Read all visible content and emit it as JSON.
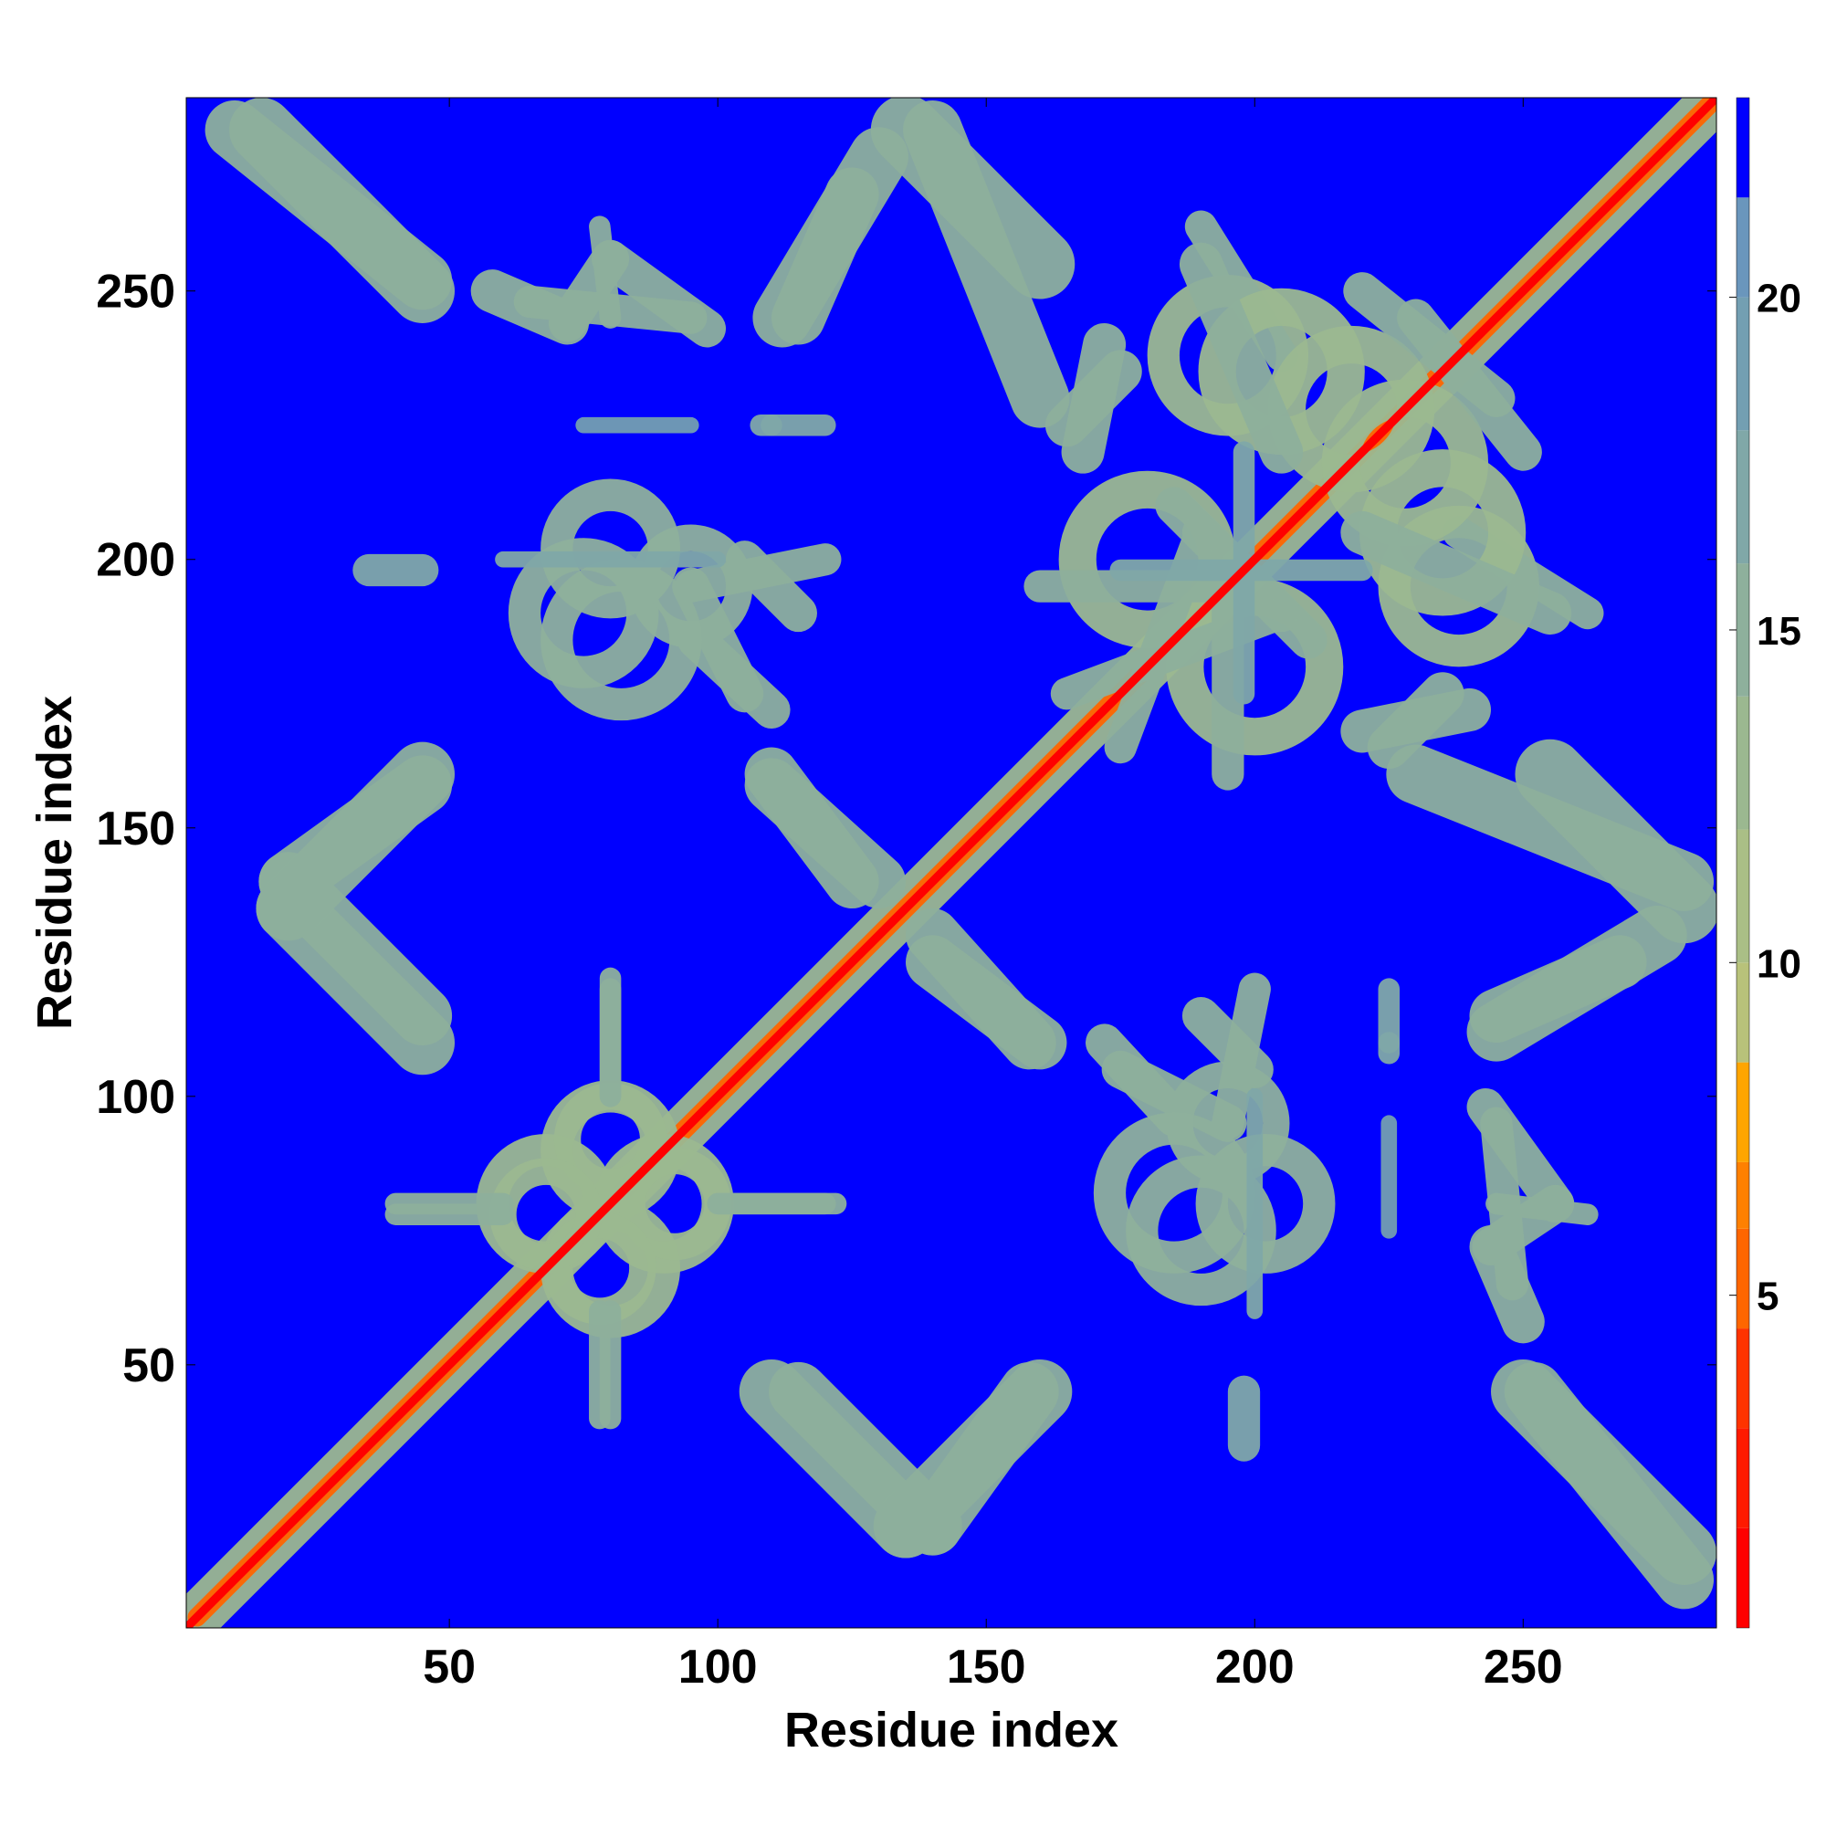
{
  "chart_data": {
    "type": "heatmap",
    "title": "",
    "xlabel": "Residue index",
    "ylabel": "Residue index",
    "xlim": [
      1,
      286
    ],
    "ylim": [
      1,
      286
    ],
    "x_ticks": [
      50,
      100,
      150,
      200,
      250
    ],
    "y_ticks": [
      50,
      100,
      150,
      200,
      250
    ],
    "colorbar": {
      "ticks": [
        5,
        10,
        15,
        20
      ],
      "range": [
        0,
        23
      ],
      "levels": [
        {
          "from": 0,
          "to": 1.5,
          "color": "#ff0000"
        },
        {
          "from": 1.5,
          "to": 3,
          "color": "#ff1a00"
        },
        {
          "from": 3,
          "to": 4.5,
          "color": "#ff3300"
        },
        {
          "from": 4.5,
          "to": 6,
          "color": "#ff6600"
        },
        {
          "from": 6,
          "to": 7,
          "color": "#ff8000"
        },
        {
          "from": 7,
          "to": 8.5,
          "color": "#ffa500"
        },
        {
          "from": 8.5,
          "to": 10,
          "color": "#b8c27a"
        },
        {
          "from": 10,
          "to": 12,
          "color": "#aabf86"
        },
        {
          "from": 12,
          "to": 14,
          "color": "#9bb890"
        },
        {
          "from": 14,
          "to": 16,
          "color": "#8eb09c"
        },
        {
          "from": 16,
          "to": 18,
          "color": "#80a8a8"
        },
        {
          "from": 18,
          "to": 20,
          "color": "#739fb2"
        },
        {
          "from": 20,
          "to": 21.5,
          "color": "#6a96bc"
        },
        {
          "from": 21.5,
          "to": 23,
          "color": "#0000ff"
        }
      ]
    },
    "background_value": 23,
    "diagonal": {
      "from": 1,
      "to": 286,
      "value": 1
    },
    "contact_regions": [
      {
        "type": "segment",
        "from": [
          3,
          3
        ],
        "to": [
          286,
          286
        ],
        "width": 9,
        "value": 12
      },
      {
        "type": "segment",
        "from": [
          3,
          3
        ],
        "to": [
          286,
          286
        ],
        "width": 3.5,
        "value": 5
      },
      {
        "type": "segment",
        "from": [
          10,
          280
        ],
        "to": [
          45,
          252
        ],
        "width": 11,
        "value": 15
      },
      {
        "type": "segment",
        "from": [
          58,
          250
        ],
        "to": [
          72,
          244
        ],
        "width": 8,
        "value": 15
      },
      {
        "type": "segment",
        "from": [
          72,
          244
        ],
        "to": [
          80,
          256
        ],
        "width": 7,
        "value": 15
      },
      {
        "type": "segment",
        "from": [
          80,
          256
        ],
        "to": [
          98,
          243
        ],
        "width": 7,
        "value": 15
      },
      {
        "type": "segment",
        "from": [
          112,
          245
        ],
        "to": [
          130,
          275
        ],
        "width": 11,
        "value": 15
      },
      {
        "type": "segment",
        "from": [
          135,
          280
        ],
        "to": [
          160,
          255
        ],
        "width": 13,
        "value": 15
      },
      {
        "type": "segment",
        "from": [
          165,
          225
        ],
        "to": [
          175,
          235
        ],
        "width": 8,
        "value": 14
      },
      {
        "type": "ring",
        "center": [
          195,
          238
        ],
        "r": 12,
        "width": 6,
        "value": 13
      },
      {
        "type": "segment",
        "from": [
          190,
          262
        ],
        "to": [
          205,
          238
        ],
        "width": 6,
        "value": 14
      },
      {
        "type": "ring",
        "center": [
          218,
          228
        ],
        "r": 12,
        "width": 7,
        "value": 13
      },
      {
        "type": "ring",
        "center": [
          235,
          205
        ],
        "r": 12,
        "width": 7,
        "value": 13
      },
      {
        "type": "segment",
        "from": [
          220,
          205
        ],
        "to": [
          255,
          190
        ],
        "width": 8,
        "value": 14
      },
      {
        "type": "segment",
        "from": [
          230,
          245
        ],
        "to": [
          250,
          220
        ],
        "width": 7,
        "value": 14
      },
      {
        "type": "ring",
        "center": [
          180,
          200
        ],
        "r": 13,
        "width": 7,
        "value": 13
      },
      {
        "type": "segment",
        "from": [
          160,
          195
        ],
        "to": [
          200,
          195
        ],
        "width": 6,
        "value": 14
      },
      {
        "type": "segment",
        "from": [
          175,
          165
        ],
        "to": [
          190,
          205
        ],
        "width": 6,
        "value": 14
      },
      {
        "type": "segment",
        "from": [
          190,
          205
        ],
        "to": [
          210,
          185
        ],
        "width": 7,
        "value": 14
      },
      {
        "type": "segment",
        "from": [
          198,
          175
        ],
        "to": [
          198,
          220
        ],
        "width": 4,
        "value": 16
      },
      {
        "type": "segment",
        "from": [
          220,
          168
        ],
        "to": [
          240,
          172
        ],
        "width": 8,
        "value": 14
      },
      {
        "type": "ring",
        "center": [
          75,
          190
        ],
        "r": 11,
        "width": 6,
        "value": 14
      },
      {
        "type": "ring",
        "center": [
          95,
          195
        ],
        "r": 9,
        "width": 5,
        "value": 14
      },
      {
        "type": "segment",
        "from": [
          96,
          185
        ],
        "to": [
          110,
          172
        ],
        "width": 7,
        "value": 14
      },
      {
        "type": "segment",
        "from": [
          105,
          200
        ],
        "to": [
          115,
          190
        ],
        "width": 7,
        "value": 14
      },
      {
        "type": "segment",
        "from": [
          110,
          158
        ],
        "to": [
          130,
          140
        ],
        "width": 10,
        "value": 14
      },
      {
        "type": "segment",
        "from": [
          140,
          125
        ],
        "to": [
          160,
          110
        ],
        "width": 10,
        "value": 14
      },
      {
        "type": "segment",
        "from": [
          20,
          140
        ],
        "to": [
          45,
          158
        ],
        "width": 11,
        "value": 15
      },
      {
        "type": "segment",
        "from": [
          20,
          140
        ],
        "to": [
          45,
          115
        ],
        "width": 11,
        "value": 15
      },
      {
        "type": "segment",
        "from": [
          230,
          160
        ],
        "to": [
          280,
          140
        ],
        "width": 11,
        "value": 15
      },
      {
        "type": "segment",
        "from": [
          245,
          115
        ],
        "to": [
          268,
          125
        ],
        "width": 10,
        "value": 15
      },
      {
        "type": "segment",
        "from": [
          250,
          45
        ],
        "to": [
          280,
          15
        ],
        "width": 12,
        "value": 15
      },
      {
        "type": "segment",
        "from": [
          110,
          45
        ],
        "to": [
          135,
          20
        ],
        "width": 12,
        "value": 15
      },
      {
        "type": "segment",
        "from": [
          135,
          20
        ],
        "to": [
          160,
          45
        ],
        "width": 12,
        "value": 15
      },
      {
        "type": "ring",
        "center": [
          68,
          80
        ],
        "r": 10,
        "width": 6,
        "value": 13
      },
      {
        "type": "ring",
        "center": [
          90,
          80
        ],
        "r": 10,
        "width": 6,
        "value": 13
      },
      {
        "type": "ring",
        "center": [
          80,
          92
        ],
        "r": 8,
        "width": 5,
        "value": 13
      },
      {
        "type": "ring",
        "center": [
          78,
          68
        ],
        "r": 8,
        "width": 5,
        "value": 13
      },
      {
        "type": "segment",
        "from": [
          80,
          100
        ],
        "to": [
          80,
          120
        ],
        "width": 4,
        "value": 14
      },
      {
        "type": "segment",
        "from": [
          80,
          60
        ],
        "to": [
          80,
          40
        ],
        "width": 4,
        "value": 14
      },
      {
        "type": "segment",
        "from": [
          40,
          78
        ],
        "to": [
          60,
          78
        ],
        "width": 4,
        "value": 14
      },
      {
        "type": "segment",
        "from": [
          100,
          80
        ],
        "to": [
          122,
          80
        ],
        "width": 4,
        "value": 14
      },
      {
        "type": "ring",
        "center": [
          185,
          82
        ],
        "r": 12,
        "width": 6,
        "value": 14
      },
      {
        "type": "ring",
        "center": [
          202,
          80
        ],
        "r": 10,
        "width": 6,
        "value": 14
      },
      {
        "type": "segment",
        "from": [
          175,
          105
        ],
        "to": [
          195,
          95
        ],
        "width": 7,
        "value": 14
      },
      {
        "type": "segment",
        "from": [
          195,
          95
        ],
        "to": [
          200,
          120
        ],
        "width": 6,
        "value": 14
      },
      {
        "type": "segment",
        "from": [
          245,
          95
        ],
        "to": [
          248,
          65
        ],
        "width": 6,
        "value": 14
      },
      {
        "type": "segment",
        "from": [
          245,
          80
        ],
        "to": [
          262,
          78
        ],
        "width": 4,
        "value": 15
      },
      {
        "type": "segment",
        "from": [
          198,
          45
        ],
        "to": [
          198,
          35
        ],
        "width": 6,
        "value": 16
      },
      {
        "type": "segment",
        "from": [
          225,
          110
        ],
        "to": [
          225,
          108
        ],
        "width": 4,
        "value": 16
      },
      {
        "type": "segment",
        "from": [
          75,
          225
        ],
        "to": [
          95,
          225
        ],
        "width": 3,
        "value": 18
      },
      {
        "type": "segment",
        "from": [
          110,
          225
        ],
        "to": [
          120,
          225
        ],
        "width": 4,
        "value": 17
      },
      {
        "type": "segment",
        "from": [
          60,
          200
        ],
        "to": [
          100,
          200
        ],
        "width": 3,
        "value": 16
      }
    ]
  }
}
